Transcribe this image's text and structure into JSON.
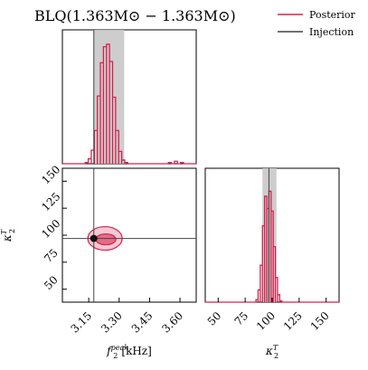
{
  "chart_data": [
    {
      "type": "histogram",
      "panel": "marginal-f2peak",
      "title": "BLQ(1.363M⊙ − 1.363M⊙)",
      "xlim": [
        3.02,
        3.68
      ],
      "bins": [
        {
          "x": 3.14,
          "y": 0.01
        },
        {
          "x": 3.155,
          "y": 0.04
        },
        {
          "x": 3.17,
          "y": 0.11
        },
        {
          "x": 3.185,
          "y": 0.27
        },
        {
          "x": 3.2,
          "y": 0.55
        },
        {
          "x": 3.215,
          "y": 0.82
        },
        {
          "x": 3.23,
          "y": 0.95
        },
        {
          "x": 3.245,
          "y": 0.97
        },
        {
          "x": 3.26,
          "y": 0.83
        },
        {
          "x": 3.275,
          "y": 0.54
        },
        {
          "x": 3.29,
          "y": 0.27
        },
        {
          "x": 3.305,
          "y": 0.1
        },
        {
          "x": 3.32,
          "y": 0.03
        },
        {
          "x": 3.335,
          "y": 0.01
        },
        {
          "x": 3.55,
          "y": 0.01
        },
        {
          "x": 3.58,
          "y": 0.02
        },
        {
          "x": 3.61,
          "y": 0.01
        }
      ],
      "credible_interval": [
        3.175,
        3.325
      ],
      "injection": 3.175
    },
    {
      "type": "contour",
      "panel": "joint",
      "xlabel": "f2peak [kHz]",
      "ylabel": "κ2T",
      "xlim": [
        3.02,
        3.68
      ],
      "ylim": [
        38,
        162
      ],
      "xticks": [
        "3.15",
        "3.30",
        "3.45",
        "3.60"
      ],
      "yticks": [
        "50",
        "75",
        "100",
        "125",
        "150"
      ],
      "peak": {
        "x": 3.23,
        "y": 97
      },
      "injection": {
        "x": 3.175,
        "y": 97
      }
    },
    {
      "type": "histogram",
      "panel": "marginal-kappa2T",
      "xlabel": "κ2T",
      "xlim": [
        38,
        162
      ],
      "xticks": [
        "50",
        "75",
        "100",
        "125",
        "150"
      ],
      "bins": [
        {
          "x": 86,
          "y": 0.02
        },
        {
          "x": 88,
          "y": 0.1
        },
        {
          "x": 90,
          "y": 0.3
        },
        {
          "x": 92,
          "y": 0.62
        },
        {
          "x": 94,
          "y": 0.86
        },
        {
          "x": 96,
          "y": 0.76
        },
        {
          "x": 98,
          "y": 0.9
        },
        {
          "x": 100,
          "y": 0.74
        },
        {
          "x": 102,
          "y": 0.45
        },
        {
          "x": 104,
          "y": 0.2
        },
        {
          "x": 106,
          "y": 0.06
        },
        {
          "x": 108,
          "y": 0.01
        }
      ],
      "credible_interval": [
        91,
        104
      ],
      "injection": 97
    }
  ],
  "legend": {
    "items": [
      {
        "label": "Posterior",
        "color": "#d6204d"
      },
      {
        "label": "Injection",
        "color": "#444444"
      }
    ]
  },
  "colors": {
    "posterior": "#d6204d",
    "band": "#c8c8c8",
    "injection": "#444444"
  }
}
